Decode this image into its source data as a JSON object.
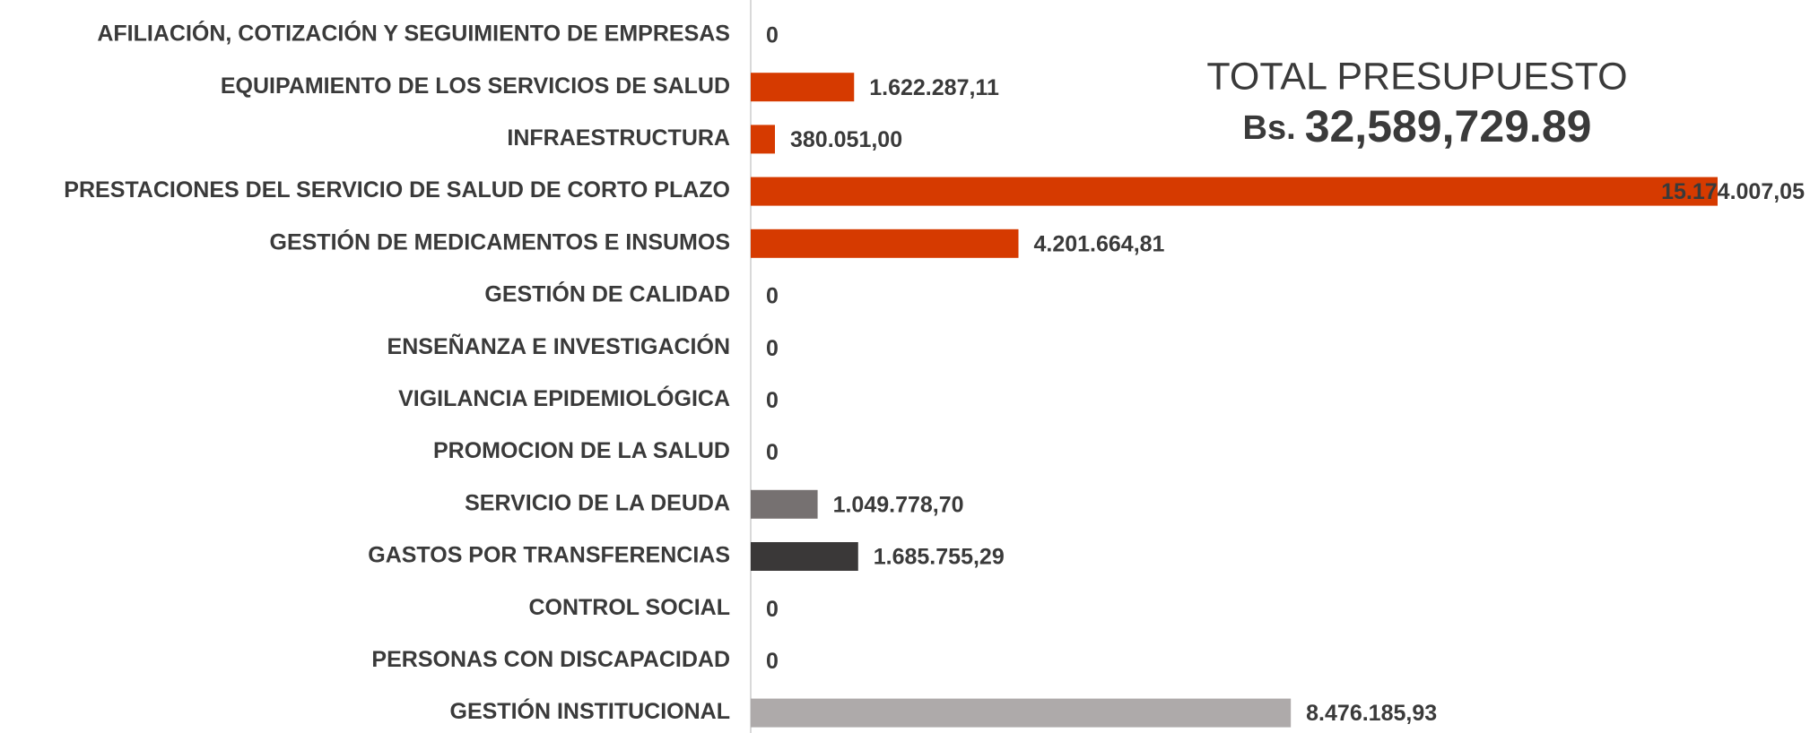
{
  "chart_data": {
    "type": "bar",
    "orientation": "horizontal",
    "categories": [
      "AFILIACIÓN, COTIZACIÓN Y SEGUIMIENTO DE EMPRESAS",
      "EQUIPAMIENTO DE LOS SERVICIOS DE SALUD",
      "INFRAESTRUCTURA",
      "PRESTACIONES DEL SERVICIO DE SALUD DE CORTO PLAZO",
      "GESTIÓN DE MEDICAMENTOS E INSUMOS",
      "GESTIÓN DE CALIDAD",
      "ENSEÑANZA E INVESTIGACIÓN",
      "VIGILANCIA EPIDEMIOLÓGICA",
      "PROMOCION DE LA SALUD",
      "SERVICIO DE LA DEUDA",
      "GASTOS POR TRANSFERENCIAS",
      "CONTROL SOCIAL",
      "PERSONAS CON DISCAPACIDAD",
      "GESTIÓN INSTITUCIONAL"
    ],
    "values": [
      0,
      1622287.11,
      380051.0,
      15174007.05,
      4201664.81,
      0,
      0,
      0,
      0,
      1049778.7,
      1685755.29,
      0,
      0,
      8476185.93
    ],
    "value_labels": [
      "0",
      "1.622.287,11",
      "380.051,00",
      "15.174.007,05",
      "4.201.664,81",
      "0",
      "0",
      "0",
      "0",
      "1.049.778,70",
      "1.685.755,29",
      "0",
      "0",
      "8.476.185,93"
    ],
    "colors": [
      "#d63a00",
      "#d63a00",
      "#d63a00",
      "#d63a00",
      "#d63a00",
      "#d63a00",
      "#d63a00",
      "#d63a00",
      "#d63a00",
      "#767171",
      "#3a3838",
      "#aeaaaa",
      "#aeaaaa",
      "#aeaaaa"
    ],
    "annotation": {
      "title": "TOTAL PRESUPUESTO",
      "prefix": "Bs.",
      "total": "32,589,729.89"
    }
  }
}
